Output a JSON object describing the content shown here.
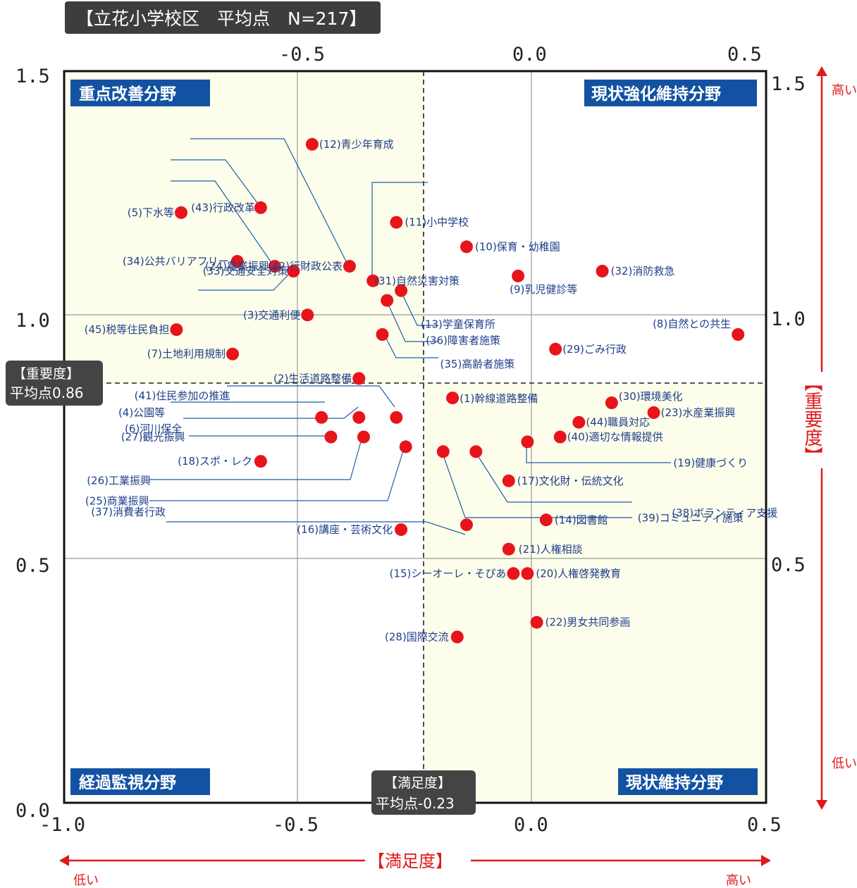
{
  "chart_title": "【立花小学校区　平均点　N=217】",
  "quadrants": {
    "top_left": "重点改善分野",
    "top_right": "現状強化維持分野",
    "bottom_left": "経過監視分野",
    "bottom_right": "現状維持分野"
  },
  "avg_importance": {
    "line1": "【重要度】",
    "line2": "平均点0.86"
  },
  "avg_satisfaction": {
    "line1": "【満足度】",
    "line2": "平均点-0.23"
  },
  "x_axis": {
    "label": "【満足度】",
    "low": "低い",
    "high": "高い"
  },
  "y_axis": {
    "label": "【重要度】",
    "high": "高い",
    "low": "低い"
  },
  "colors": {
    "point": "#e8141b",
    "label": "#1f3f8a",
    "quadrant_bg": "#fdfdeb",
    "badge": "#1352a2",
    "avg_box": "#444444",
    "axis_arrow": "#e0191b"
  },
  "chart_data": {
    "type": "scatter",
    "title": "【立花小学校区　平均点　N=217】",
    "xlabel": "【満足度】",
    "ylabel": "【重要度】",
    "xlim": [
      -1.0,
      0.5
    ],
    "ylim": [
      0.0,
      1.5
    ],
    "x_ticks": [
      "-1.0",
      "-0.5",
      "0.0",
      "0.5"
    ],
    "x_ticks_top": [
      "-0.5",
      "0.0",
      "0.5"
    ],
    "y_ticks_left": [
      "0.0",
      "0.5",
      "1.0",
      "1.5"
    ],
    "y_ticks_right": [
      "0.5",
      "1.0",
      "1.5"
    ],
    "mean_x": -0.23,
    "mean_y": 0.86,
    "grid": true,
    "points": [
      {
        "id": "p12",
        "label": "(12)青少年育成",
        "x": -0.47,
        "y": 1.35
      },
      {
        "id": "p31",
        "label": "(31)自然災害対策",
        "x": -0.34,
        "y": 1.07
      },
      {
        "id": "p42",
        "label": "(42)行財政公表",
        "x": -0.39,
        "y": 1.1
      },
      {
        "id": "p43",
        "label": "(43)行政改革",
        "x": -0.58,
        "y": 1.22
      },
      {
        "id": "p24",
        "label": "(24)農業振興",
        "x": -0.55,
        "y": 1.1
      },
      {
        "id": "p5",
        "label": "(5)下水等",
        "x": -0.75,
        "y": 1.21
      },
      {
        "id": "p34",
        "label": "(34)公共バリアフリー",
        "x": -0.63,
        "y": 1.11
      },
      {
        "id": "p33",
        "label": "(33)交通安全対策",
        "x": -0.51,
        "y": 1.09
      },
      {
        "id": "p11",
        "label": "(11)小中学校",
        "x": -0.29,
        "y": 1.19
      },
      {
        "id": "p10",
        "label": "(10)保育・幼稚園",
        "x": -0.14,
        "y": 1.14
      },
      {
        "id": "p32",
        "label": "(32)消防救急",
        "x": 0.15,
        "y": 1.09
      },
      {
        "id": "p9",
        "label": "(9)乳児健診等",
        "x": -0.03,
        "y": 1.08
      },
      {
        "id": "p13",
        "label": "(13)学童保育所",
        "x": -0.28,
        "y": 1.05
      },
      {
        "id": "p36",
        "label": "(36)障害者施策",
        "x": -0.31,
        "y": 1.03
      },
      {
        "id": "p35",
        "label": "(35)高齢者施策",
        "x": -0.32,
        "y": 0.96
      },
      {
        "id": "p3",
        "label": "(3)交通利便",
        "x": -0.48,
        "y": 1.0
      },
      {
        "id": "p45",
        "label": "(45)税等住民負担",
        "x": -0.76,
        "y": 0.97
      },
      {
        "id": "p8",
        "label": "(8)自然との共生",
        "x": 0.44,
        "y": 0.96
      },
      {
        "id": "p29",
        "label": "(29)ごみ行政",
        "x": 0.05,
        "y": 0.93
      },
      {
        "id": "p7",
        "label": "(7)土地利用規制",
        "x": -0.64,
        "y": 0.92
      },
      {
        "id": "p2",
        "label": "(2)生活道路整備",
        "x": -0.37,
        "y": 0.87
      },
      {
        "id": "p41",
        "label": "(41)住民参加の推進",
        "x": -0.29,
        "y": 0.79
      },
      {
        "id": "p4",
        "label": "(4)公園等",
        "x": -0.45,
        "y": 0.79
      },
      {
        "id": "p6",
        "label": "(6)河川保全",
        "x": -0.37,
        "y": 0.79
      },
      {
        "id": "p1",
        "label": "(1)幹線道路整備",
        "x": -0.17,
        "y": 0.83
      },
      {
        "id": "p30",
        "label": "(30)環境美化",
        "x": 0.17,
        "y": 0.82
      },
      {
        "id": "p23",
        "label": "(23)水産業振興",
        "x": 0.26,
        "y": 0.8
      },
      {
        "id": "p44",
        "label": "(44)職員対応",
        "x": 0.1,
        "y": 0.78
      },
      {
        "id": "p27",
        "label": "(27)観光振興",
        "x": -0.43,
        "y": 0.75
      },
      {
        "id": "p26",
        "label": "(26)工業振興",
        "x": -0.36,
        "y": 0.75
      },
      {
        "id": "p40",
        "label": "(40)適切な情報提供",
        "x": 0.06,
        "y": 0.75
      },
      {
        "id": "p19",
        "label": "(19)健康づくり",
        "x": -0.01,
        "y": 0.74
      },
      {
        "id": "p25",
        "label": "(25)商業振興",
        "x": -0.27,
        "y": 0.73
      },
      {
        "id": "p38",
        "label": "(38)ボランティア支援",
        "x": -0.12,
        "y": 0.72
      },
      {
        "id": "p39",
        "label": "(39)コミュニティ施策",
        "x": -0.19,
        "y": 0.72
      },
      {
        "id": "p18",
        "label": "(18)スポ・レク",
        "x": -0.58,
        "y": 0.7
      },
      {
        "id": "p17",
        "label": "(17)文化財・伝統文化",
        "x": -0.05,
        "y": 0.66
      },
      {
        "id": "p14",
        "label": "(14)図書館",
        "x": 0.03,
        "y": 0.58
      },
      {
        "id": "p37",
        "label": "(37)消費者行政",
        "x": -0.14,
        "y": 0.57
      },
      {
        "id": "p16",
        "label": "(16)講座・芸術文化",
        "x": -0.28,
        "y": 0.56
      },
      {
        "id": "p21",
        "label": "(21)人権相談",
        "x": -0.05,
        "y": 0.52
      },
      {
        "id": "p15",
        "label": "(15)シーオーレ・そぴあ",
        "x": -0.04,
        "y": 0.47
      },
      {
        "id": "p20",
        "label": "(20)人権啓発教育",
        "x": -0.01,
        "y": 0.47
      },
      {
        "id": "p22",
        "label": "(22)男女共同参画",
        "x": 0.01,
        "y": 0.37
      },
      {
        "id": "p28",
        "label": "(28)国際交流",
        "x": -0.16,
        "y": 0.34
      }
    ]
  }
}
